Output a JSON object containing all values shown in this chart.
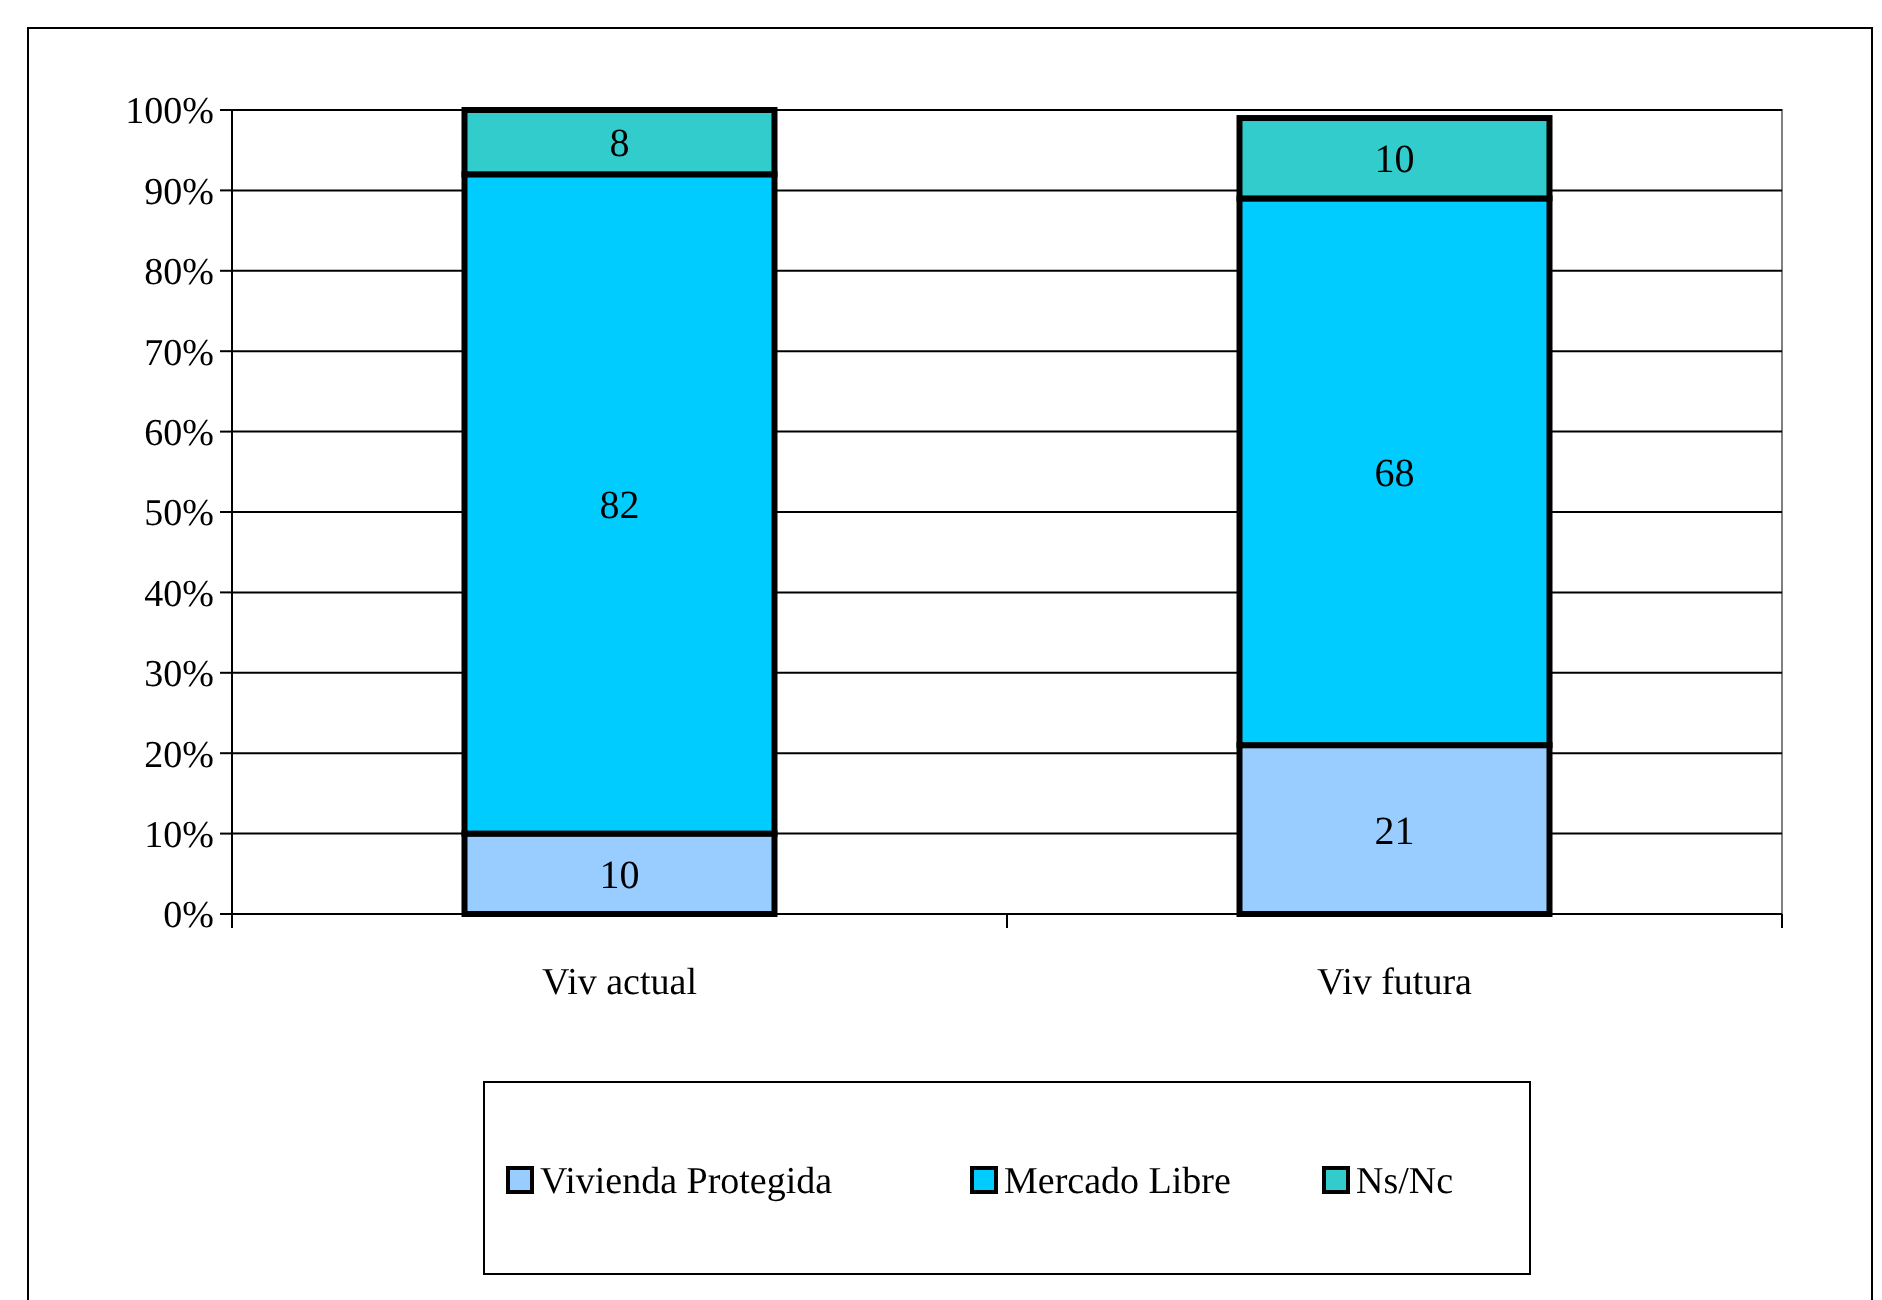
{
  "chart_data": {
    "type": "bar",
    "stacked": true,
    "categories": [
      "Viv actual",
      "Viv futura"
    ],
    "series": [
      {
        "name": "Vivienda Protegida",
        "color": "#99ccff",
        "values": [
          10,
          21
        ]
      },
      {
        "name": "Mercado Libre",
        "color": "#00ccff",
        "values": [
          82,
          68
        ]
      },
      {
        "name": "Ns/Nc",
        "color": "#33cccc",
        "values": [
          8,
          10
        ]
      }
    ],
    "ylim": [
      0,
      100
    ],
    "yticks": [
      {
        "value": 0,
        "label": "0%"
      },
      {
        "value": 10,
        "label": "10%"
      },
      {
        "value": 20,
        "label": "20%"
      },
      {
        "value": 30,
        "label": "30%"
      },
      {
        "value": 40,
        "label": "40%"
      },
      {
        "value": 50,
        "label": "50%"
      },
      {
        "value": 60,
        "label": "60%"
      },
      {
        "value": 70,
        "label": "70%"
      },
      {
        "value": 80,
        "label": "80%"
      },
      {
        "value": 90,
        "label": "90%"
      },
      {
        "value": 100,
        "label": "100%"
      }
    ],
    "grid": "y",
    "legend": "bottom",
    "data_labels": true
  }
}
